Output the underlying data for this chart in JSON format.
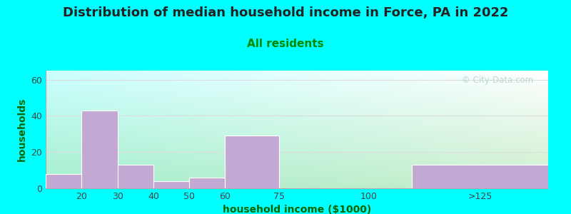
{
  "title": "Distribution of median household income in Force, PA in 2022",
  "subtitle": "All residents",
  "xlabel": "household income ($1000)",
  "ylabel": "households",
  "bar_color": "#C4A8D4",
  "bar_edge_color": "#FFFFFF",
  "background_color": "#00FFFF",
  "plot_bg_top": "#F0FAF0",
  "plot_bg_bottom": "#D8F0D8",
  "plot_bg_left": "#E8F8FF",
  "yticks": [
    0,
    20,
    40,
    60
  ],
  "ylim": [
    0,
    65
  ],
  "categories": [
    "20",
    "30",
    "40",
    "50",
    "60",
    "75",
    "100",
    ">125"
  ],
  "values": [
    8,
    43,
    13,
    4,
    6,
    29,
    0,
    13
  ],
  "bar_lefts": [
    10,
    20,
    30,
    40,
    50,
    60,
    75,
    112
  ],
  "bar_rights": [
    20,
    30,
    40,
    50,
    60,
    75,
    100,
    150
  ],
  "xlim": [
    10,
    150
  ],
  "xtick_values": [
    20,
    30,
    40,
    50,
    60,
    75,
    100
  ],
  "xtick_label_125_pos": 131,
  "title_fontsize": 13,
  "subtitle_fontsize": 11,
  "axis_label_fontsize": 10,
  "tick_fontsize": 9,
  "watermark_text": "© City-Data.com",
  "grid_color": "#DDDDDD",
  "title_color": "#222222",
  "subtitle_color": "#008800",
  "axis_label_color": "#006600"
}
